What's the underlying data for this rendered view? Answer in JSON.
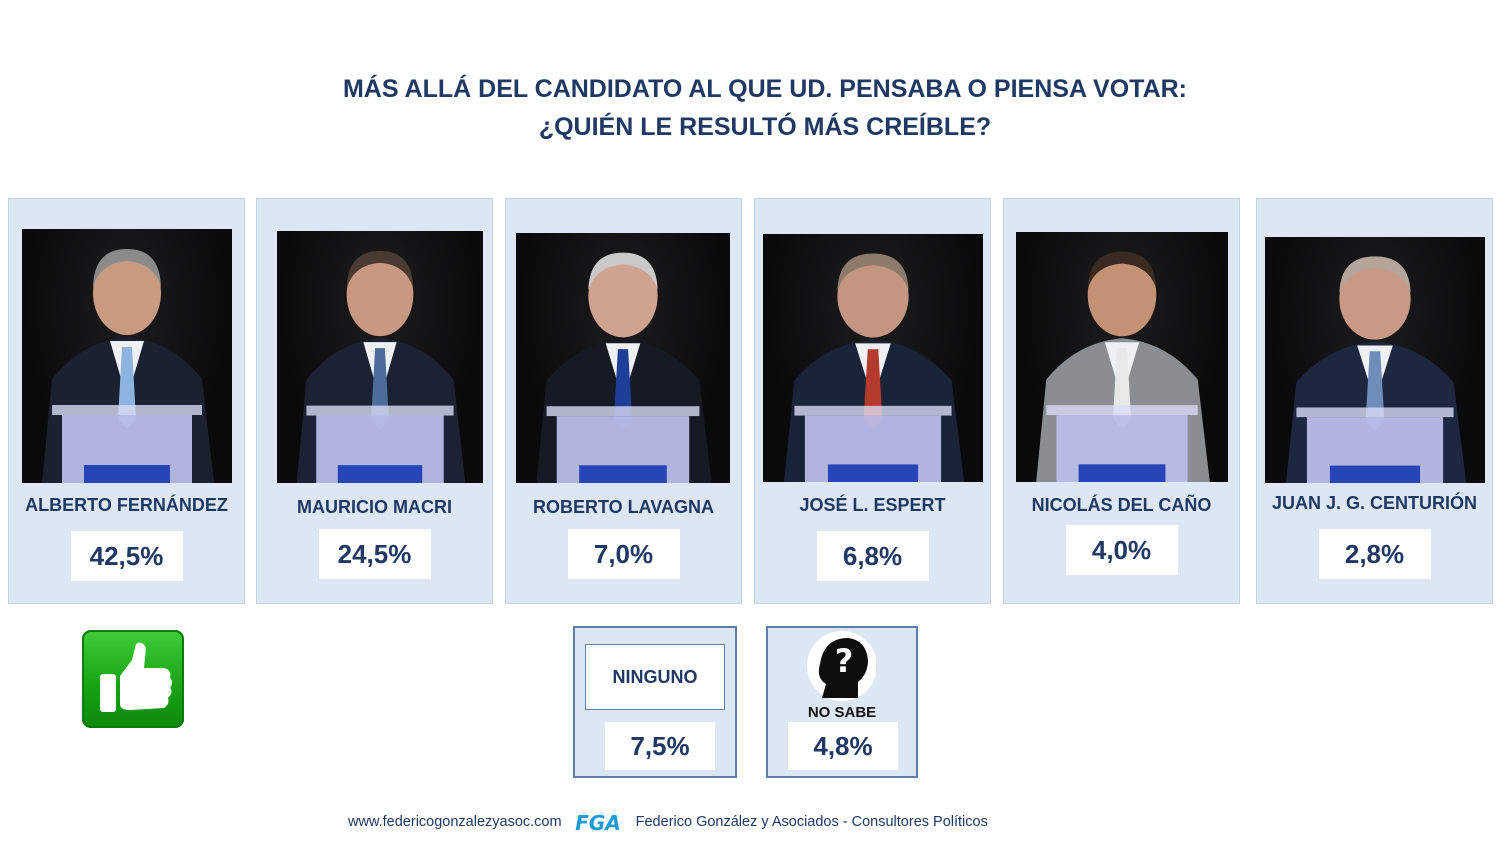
{
  "title": {
    "line1": "MÁS ALLÁ DEL CANDIDATO AL QUE UD. PENSABA O PIENSA VOTAR:",
    "line2": "¿QUIÉN LE RESULTÓ MÁS CREÍBLE?"
  },
  "chart_data": {
    "type": "table",
    "unit": "%",
    "categories": [
      "ALBERTO FERNÁNDEZ",
      "MAURICIO MACRI",
      "ROBERTO LAVAGNA",
      "JOSÉ L. ESPERT",
      "NICOLÁS DEL CAÑO",
      "JUAN J. G. CENTURIÓN",
      "NINGUNO",
      "NO SABE"
    ],
    "values": [
      42.5,
      24.5,
      7.0,
      6.8,
      4.0,
      2.8,
      7.5,
      4.8
    ],
    "labels": [
      "42,5%",
      "24,5%",
      "7,0%",
      "6,8%",
      "4,0%",
      "2,8%",
      "7,5%",
      "4,8%"
    ]
  },
  "candidates": [
    {
      "name": "ALBERTO FERNÁNDEZ",
      "pct": "42,5%",
      "tie": "#8db4de",
      "suit": "#1b2130",
      "skin": "#c89a80",
      "hair": "#8a8a8a"
    },
    {
      "name": "MAURICIO MACRI",
      "pct": "24,5%",
      "tie": "#4d6e9c",
      "suit": "#1c2233",
      "skin": "#c99880",
      "hair": "#4a3b30"
    },
    {
      "name": "ROBERTO LAVAGNA",
      "pct": "7,0%",
      "tie": "#1d3f9a",
      "suit": "#161a24",
      "skin": "#d0a290",
      "hair": "#c9c9c9"
    },
    {
      "name": "JOSÉ L. ESPERT",
      "pct": "6,8%",
      "tie": "#b53a2e",
      "suit": "#1a2438",
      "skin": "#c49580",
      "hair": "#8c7a6a"
    },
    {
      "name": "NICOLÁS DEL CAÑO",
      "pct": "4,0%",
      "tie": "#e8e8e8",
      "suit": "#8a8d92",
      "skin": "#c39274",
      "hair": "#3a2a20"
    },
    {
      "name": "JUAN J. G. CENTURIÓN",
      "pct": "2,8%",
      "tie": "#6e8db8",
      "suit": "#1e2740",
      "skin": "#c89a86",
      "hair": "#b4a59a"
    }
  ],
  "ninguno": {
    "label": "NINGUNO",
    "pct": "7,5%"
  },
  "no_sabe": {
    "label": "NO SABE",
    "pct": "4,8%"
  },
  "footer": {
    "url": "www.federicogonzalezyasoc.com",
    "logo_text": "FGA",
    "company": "Federico González y Asociados - Consultores Políticos"
  },
  "colors": {
    "title": "#1f3864",
    "card_bg": "#dde7f3",
    "logo": "#1a9ad6",
    "thumb": "#16a012"
  },
  "icons": [
    "thumbs-up-icon",
    "question-head-icon",
    "fga-logo"
  ]
}
